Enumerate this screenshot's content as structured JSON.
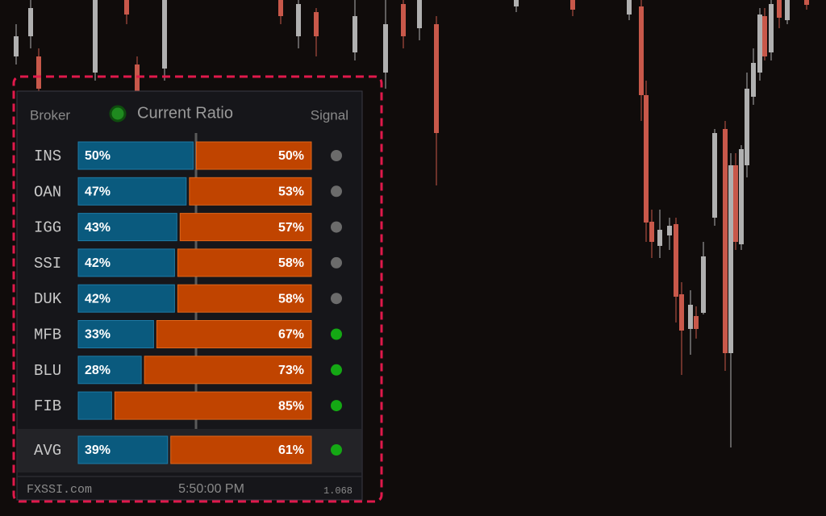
{
  "panel": {
    "header": {
      "broker": "Broker",
      "title": "Current Ratio",
      "signal": "Signal"
    },
    "rows": [
      {
        "broker": "INS",
        "long": 50,
        "long_label": "50%",
        "short": 50,
        "short_label": "50%",
        "signal_color": "#6b6b6b"
      },
      {
        "broker": "OAN",
        "long": 47,
        "long_label": "47%",
        "short": 53,
        "short_label": "53%",
        "signal_color": "#6b6b6b"
      },
      {
        "broker": "IGG",
        "long": 43,
        "long_label": "43%",
        "short": 57,
        "short_label": "57%",
        "signal_color": "#6b6b6b"
      },
      {
        "broker": "SSI",
        "long": 42,
        "long_label": "42%",
        "short": 58,
        "short_label": "58%",
        "signal_color": "#6b6b6b"
      },
      {
        "broker": "DUK",
        "long": 42,
        "long_label": "42%",
        "short": 58,
        "short_label": "58%",
        "signal_color": "#6b6b6b"
      },
      {
        "broker": "MFB",
        "long": 33,
        "long_label": "33%",
        "short": 67,
        "short_label": "67%",
        "signal_color": "#14a814"
      },
      {
        "broker": "BLU",
        "long": 28,
        "long_label": "28%",
        "short": 73,
        "short_label": "73%",
        "signal_color": "#14a814"
      },
      {
        "broker": "FIB",
        "long": 15,
        "short": 85,
        "short_label": "85%",
        "signal_color": "#14a814"
      }
    ],
    "avg": {
      "broker": "AVG",
      "long": 39,
      "long_label": "39%",
      "short": 61,
      "short_label": "61%",
      "signal_color": "#14a814"
    },
    "footer": {
      "site": "FXSSI.com",
      "time": "5:50:00 PM",
      "version": "1.068"
    }
  }
}
